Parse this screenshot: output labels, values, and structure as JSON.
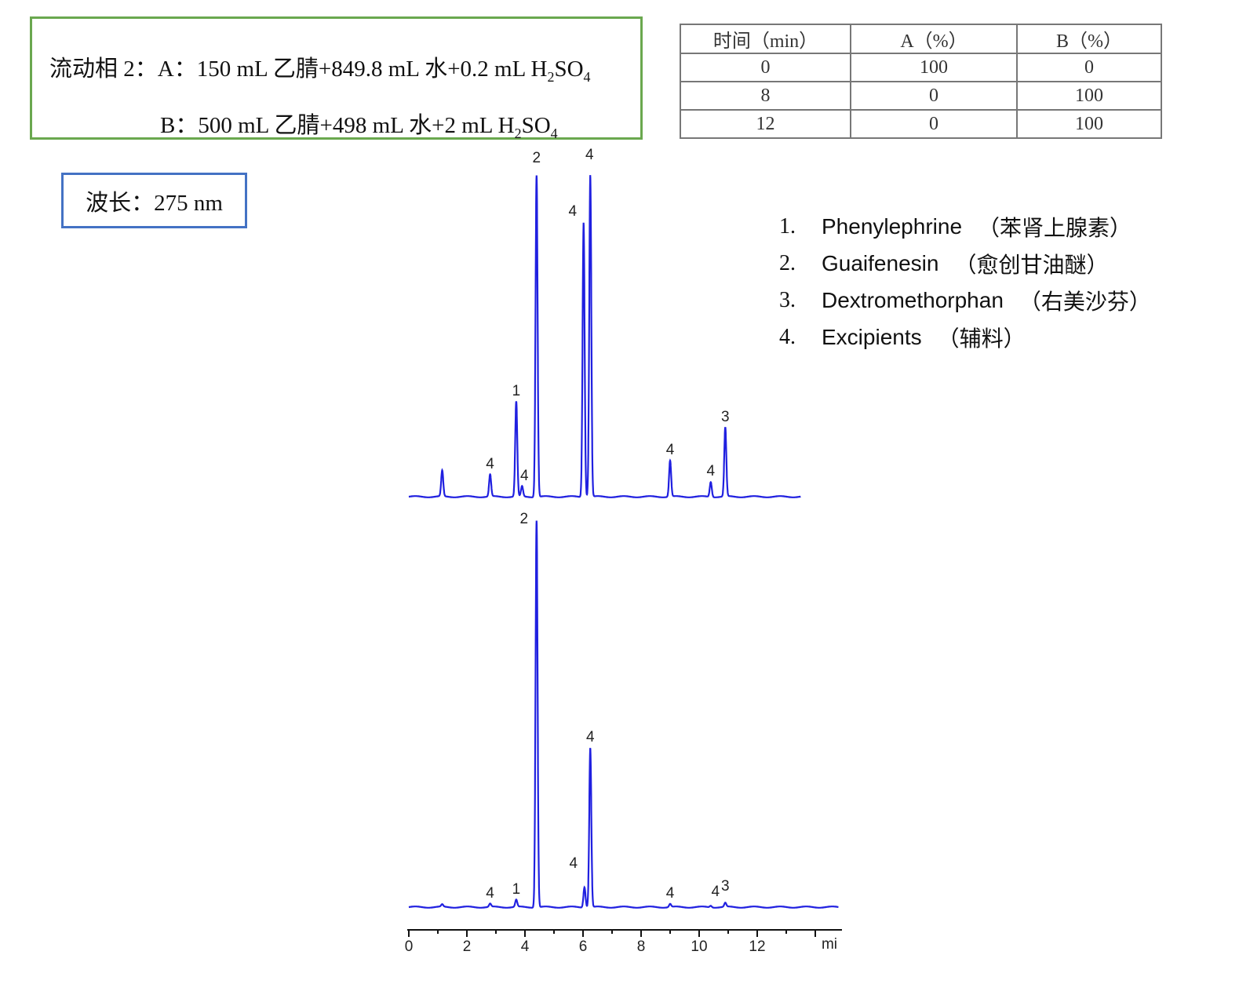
{
  "mobile_phase": {
    "line_a_prefix": "流动相 2：A：150 mL 乙腈+849.8 mL 水+0.2 mL H",
    "line_a_sub": "2",
    "line_a_suffix": "SO",
    "line_a_sub2": "4",
    "line_b_prefix": "B：500 mL 乙腈+498 mL 水+2 mL H",
    "line_b_sub": "2",
    "line_b_suffix": "SO",
    "line_b_sub2": "4",
    "border_color": "#6aa84f"
  },
  "wavelength": {
    "label": "波长：275 nm",
    "border_color": "#4472c4"
  },
  "gradient_table": {
    "headers": [
      "时间（min）",
      "A（%）",
      "B（%）"
    ],
    "rows": [
      [
        "0",
        "100",
        "0"
      ],
      [
        "8",
        "0",
        "100"
      ],
      [
        "12",
        "0",
        "100"
      ]
    ]
  },
  "legend": [
    {
      "num": "1.",
      "name": "Phenylephrine",
      "cn": "（苯肾上腺素）"
    },
    {
      "num": "2.",
      "name": "Guaifenesin",
      "cn": "（愈创甘油醚）"
    },
    {
      "num": "3.",
      "name": "Dextromethorphan",
      "cn": "（右美沙芬）"
    },
    {
      "num": "4.",
      "name": "Excipients",
      "cn": "（辅料）"
    }
  ],
  "chart_data": [
    {
      "type": "line",
      "xlabel": "mi",
      "x_ticks": [
        "0",
        "2",
        "4",
        "6",
        "8",
        "10",
        "12"
      ],
      "xlim": [
        0,
        13.5
      ],
      "ylim": [
        0,
        410
      ],
      "line_color": "#2020e0",
      "peaks": [
        {
          "t": 1.15,
          "height": 33,
          "label": ""
        },
        {
          "t": 2.8,
          "height": 28,
          "label": "4"
        },
        {
          "t": 3.7,
          "height": 121,
          "label": "1"
        },
        {
          "t": 3.9,
          "height": 13,
          "label": "4"
        },
        {
          "t": 4.4,
          "height": 410,
          "label": "2"
        },
        {
          "t": 6.02,
          "height": 350,
          "label": "4"
        },
        {
          "t": 6.25,
          "height": 410,
          "label": "4"
        },
        {
          "t": 9.0,
          "height": 46,
          "label": "4"
        },
        {
          "t": 10.4,
          "height": 19,
          "label": "4"
        },
        {
          "t": 10.9,
          "height": 88,
          "label": "3"
        }
      ]
    },
    {
      "type": "line",
      "xlabel": "mi",
      "x_ticks": [
        "0",
        "2",
        "4",
        "6",
        "8",
        "10",
        "12"
      ],
      "xlim": [
        0,
        14.8
      ],
      "ylim": [
        0,
        495
      ],
      "line_color": "#2020e0",
      "peaks": [
        {
          "t": 1.15,
          "height": 3,
          "label": ""
        },
        {
          "t": 2.8,
          "height": 4,
          "label": "4"
        },
        {
          "t": 3.7,
          "height": 9,
          "label": "1"
        },
        {
          "t": 4.4,
          "height": 493,
          "label": "2"
        },
        {
          "t": 6.05,
          "height": 26,
          "label": "4"
        },
        {
          "t": 6.25,
          "height": 203,
          "label": "4"
        },
        {
          "t": 9.0,
          "height": 4,
          "label": "4"
        },
        {
          "t": 10.4,
          "height": 2,
          "label": "4"
        },
        {
          "t": 10.9,
          "height": 5,
          "label": "3"
        }
      ]
    }
  ]
}
